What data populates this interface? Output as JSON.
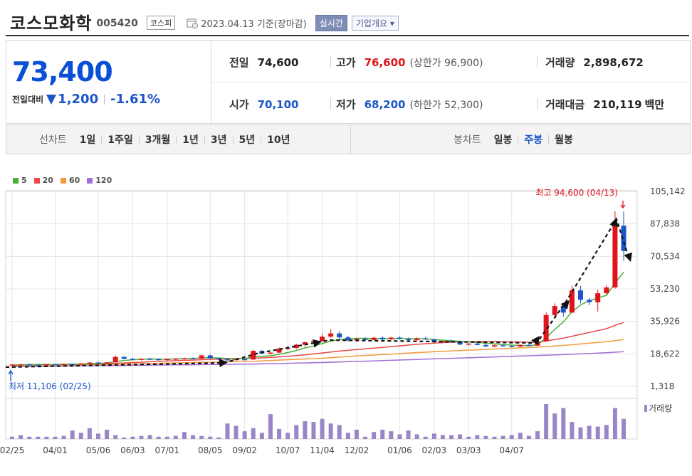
{
  "header": {
    "name": "코스모화학",
    "code": "005420",
    "market": "코스피",
    "date": "2023.04.13",
    "date_suffix": "기준(장마감)",
    "realtime": "실시간",
    "company_info": "기업개요 ▾"
  },
  "quote": {
    "price": "73,400",
    "change_label": "전일대비",
    "change_value": "1,200",
    "change_pct": "-1.61%",
    "prev_label": "전일",
    "prev_value": "74,600",
    "high_label": "고가",
    "high_value": "76,600",
    "upper_limit": "(상한가 96,900)",
    "volume_label": "거래량",
    "volume_value": "2,898,672",
    "open_label": "시가",
    "open_value": "70,100",
    "low_label": "저가",
    "low_value": "68,200",
    "lower_limit": "(하한가 52,300)",
    "amount_label": "거래대금",
    "amount_value": "210,119",
    "amount_unit": "백만"
  },
  "range_bar": {
    "line_label": "선차트",
    "line_items": [
      "1일",
      "1주일",
      "3개월",
      "1년",
      "3년",
      "5년",
      "10년"
    ],
    "candle_label": "봉차트",
    "candle_items": [
      "일봉",
      "주봉",
      "월봉"
    ],
    "candle_active": "주봉"
  },
  "colors": {
    "up": "#e0151c",
    "down": "#1b55c7",
    "ma5": "#4caf3a",
    "ma20": "#e8484a",
    "ma60": "#f39a3c",
    "ma120": "#9f6ed6",
    "volume": "#9a86c6"
  },
  "chart_data": {
    "type": "candlestick",
    "legend": [
      {
        "name": "5",
        "color": "#4caf3a"
      },
      {
        "name": "20",
        "color": "#e8484a"
      },
      {
        "name": "60",
        "color": "#f39a3c"
      },
      {
        "name": "120",
        "color": "#9f6ed6"
      }
    ],
    "y_ticks": [
      "105,142",
      "87,838",
      "70,534",
      "53,230",
      "35,926",
      "18,622",
      "1,318"
    ],
    "y_tick_values": [
      105142,
      87838,
      70534,
      53230,
      35926,
      18622,
      1318
    ],
    "x_ticks": [
      "02/25",
      "04/01",
      "05/06",
      "06/03",
      "07/01",
      "08/05",
      "09/02",
      "10/07",
      "11/04",
      "12/02",
      "01/06",
      "02/03",
      "03/03",
      "04/07"
    ],
    "max_label": "최고 94,600 (04/13)",
    "min_label": "최저 11,106 (02/25)",
    "volume_label": "거래량",
    "candles": [
      [
        12500,
        13200,
        11106,
        12900
      ],
      [
        12900,
        13300,
        12600,
        13000
      ],
      [
        13000,
        13400,
        12700,
        12800
      ],
      [
        12800,
        13100,
        12400,
        12700
      ],
      [
        12700,
        13200,
        12500,
        13100
      ],
      [
        13100,
        13300,
        12800,
        13000
      ],
      [
        13000,
        13400,
        12700,
        13200
      ],
      [
        13200,
        13500,
        12900,
        13100
      ],
      [
        13100,
        13600,
        12800,
        13500
      ],
      [
        13500,
        14200,
        13300,
        14000
      ],
      [
        14000,
        14500,
        13600,
        13800
      ],
      [
        13800,
        14300,
        13500,
        14100
      ],
      [
        14100,
        17800,
        14000,
        17000
      ],
      [
        17000,
        17300,
        15800,
        16000
      ],
      [
        16000,
        16500,
        15200,
        15700
      ],
      [
        15700,
        16200,
        15100,
        16000
      ],
      [
        16000,
        16600,
        15500,
        15800
      ],
      [
        15800,
        16300,
        15200,
        15500
      ],
      [
        15500,
        16100,
        15100,
        15900
      ],
      [
        15900,
        16400,
        15400,
        16100
      ],
      [
        16100,
        16700,
        15600,
        16300
      ],
      [
        16300,
        16800,
        15700,
        16000
      ],
      [
        16000,
        18400,
        15900,
        17800
      ],
      [
        17800,
        18200,
        15900,
        16300
      ],
      [
        16300,
        16700,
        15300,
        15700
      ],
      [
        15700,
        16200,
        15100,
        15500
      ],
      [
        15500,
        16000,
        15100,
        15800
      ],
      [
        15800,
        16300,
        15200,
        15600
      ],
      [
        15600,
        20800,
        15500,
        20200
      ],
      [
        20200,
        20700,
        18400,
        18800
      ],
      [
        18800,
        19600,
        18100,
        19300
      ],
      [
        19300,
        22000,
        19000,
        21400
      ],
      [
        21400,
        22600,
        20600,
        21800
      ],
      [
        21800,
        24000,
        21200,
        23500
      ],
      [
        23500,
        25200,
        22600,
        24800
      ],
      [
        24800,
        26000,
        23900,
        25400
      ],
      [
        25400,
        29300,
        25000,
        27800
      ],
      [
        27800,
        31700,
        27200,
        29500
      ],
      [
        29500,
        30800,
        26700,
        27400
      ],
      [
        27400,
        28300,
        25100,
        25800
      ],
      [
        25800,
        27100,
        25300,
        26600
      ],
      [
        26600,
        27400,
        25600,
        26100
      ],
      [
        26100,
        27800,
        25700,
        27200
      ],
      [
        27200,
        27900,
        25900,
        26400
      ],
      [
        26400,
        27700,
        26000,
        27300
      ],
      [
        27300,
        27900,
        26200,
        26600
      ],
      [
        26600,
        27300,
        25700,
        26000
      ],
      [
        26000,
        27400,
        25500,
        26900
      ],
      [
        26900,
        27800,
        26100,
        26300
      ],
      [
        26300,
        26700,
        24600,
        25000
      ],
      [
        25000,
        25700,
        24400,
        25400
      ],
      [
        25400,
        26200,
        24900,
        25100
      ],
      [
        25100,
        25500,
        23200,
        23600
      ],
      [
        23600,
        24300,
        22900,
        24100
      ],
      [
        24100,
        24700,
        23100,
        23400
      ],
      [
        23400,
        23900,
        22200,
        22600
      ],
      [
        22600,
        23500,
        22200,
        23200
      ],
      [
        23200,
        23700,
        22400,
        22800
      ],
      [
        22800,
        23300,
        22100,
        22500
      ],
      [
        22500,
        23700,
        22300,
        23400
      ],
      [
        23400,
        24000,
        22700,
        23000
      ],
      [
        23000,
        25700,
        22800,
        25300
      ],
      [
        25300,
        40600,
        25100,
        39300
      ],
      [
        39300,
        45500,
        38100,
        44100
      ],
      [
        44100,
        45000,
        38500,
        40600
      ],
      [
        40600,
        54900,
        40400,
        52400
      ],
      [
        52400,
        54800,
        45500,
        47400
      ],
      [
        47400,
        48400,
        44500,
        46100
      ],
      [
        46100,
        52800,
        41200,
        50900
      ],
      [
        50900,
        55200,
        50300,
        54000
      ],
      [
        54000,
        94600,
        53400,
        86900
      ],
      [
        86900,
        94600,
        68200,
        73400
      ]
    ],
    "ma5": [
      12600,
      12800,
      12900,
      12900,
      13000,
      13000,
      13100,
      13100,
      13200,
      13400,
      13600,
      13700,
      14500,
      15100,
      15500,
      15700,
      15900,
      15800,
      15800,
      15900,
      16000,
      16100,
      16500,
      16600,
      16400,
      16200,
      16100,
      16100,
      17000,
      17400,
      17600,
      18400,
      19300,
      20400,
      21800,
      22800,
      24100,
      25400,
      26300,
      26600,
      26900,
      26900,
      26800,
      26700,
      26800,
      26800,
      26700,
      26700,
      26600,
      26200,
      25900,
      25600,
      25300,
      25000,
      24700,
      24300,
      23900,
      23600,
      23300,
      23100,
      23000,
      23500,
      27200,
      31600,
      35600,
      41000,
      44700,
      46800,
      48400,
      49800,
      56400,
      62100
    ],
    "ma20": [
      12700,
      12800,
      12800,
      12900,
      12900,
      13000,
      13000,
      13100,
      13100,
      13200,
      13300,
      13400,
      13600,
      13800,
      14000,
      14200,
      14400,
      14600,
      14800,
      15000,
      15200,
      15300,
      15500,
      15700,
      15800,
      15900,
      16000,
      16100,
      16300,
      16500,
      16700,
      17000,
      17300,
      17700,
      18100,
      18600,
      19100,
      19600,
      20100,
      20500,
      20900,
      21300,
      21700,
      22100,
      22500,
      22900,
      23300,
      23700,
      24000,
      24300,
      24600,
      24800,
      25000,
      25100,
      25200,
      25200,
      25200,
      25100,
      25000,
      24900,
      24800,
      24800,
      25500,
      26300,
      27000,
      28000,
      29000,
      30000,
      31000,
      32000,
      33800,
      35300
    ],
    "ma60": [
      12400,
      12500,
      12500,
      12600,
      12600,
      12700,
      12700,
      12800,
      12800,
      12900,
      12900,
      13000,
      13100,
      13200,
      13300,
      13400,
      13500,
      13600,
      13700,
      13800,
      13900,
      14000,
      14100,
      14200,
      14300,
      14400,
      14500,
      14600,
      14700,
      14900,
      15100,
      15300,
      15500,
      15700,
      15900,
      16100,
      16300,
      16600,
      16900,
      17200,
      17500,
      17800,
      18000,
      18300,
      18500,
      18800,
      19000,
      19300,
      19500,
      19800,
      20000,
      20200,
      20400,
      20600,
      20800,
      21000,
      21200,
      21400,
      21600,
      21800,
      22000,
      22200,
      22500,
      22800,
      23100,
      23500,
      23900,
      24300,
      24700,
      25100,
      25700,
      26300
    ],
    "ma120": [
      11800,
      11850,
      11900,
      11950,
      12000,
      12050,
      12100,
      12150,
      12200,
      12250,
      12300,
      12350,
      12400,
      12450,
      12500,
      12550,
      12600,
      12650,
      12700,
      12750,
      12800,
      12850,
      12900,
      12950,
      13000,
      13050,
      13100,
      13150,
      13200,
      13300,
      13400,
      13500,
      13600,
      13700,
      13800,
      13900,
      14000,
      14150,
      14300,
      14450,
      14600,
      14750,
      14900,
      15050,
      15200,
      15350,
      15500,
      15650,
      15800,
      15950,
      16100,
      16250,
      16400,
      16550,
      16700,
      16850,
      17000,
      17150,
      17300,
      17450,
      17600,
      17750,
      17900,
      18050,
      18200,
      18400,
      18600,
      18800,
      19000,
      19200,
      19500,
      19800
    ],
    "volumes": [
      3,
      5,
      3,
      3,
      3,
      3,
      4,
      11,
      8,
      14,
      7,
      12,
      5,
      2,
      3,
      4,
      5,
      3,
      3,
      4,
      9,
      5,
      4,
      3,
      2,
      20,
      17,
      10,
      14,
      8,
      32,
      13,
      8,
      18,
      23,
      22,
      26,
      20,
      18,
      8,
      12,
      3,
      9,
      12,
      10,
      6,
      11,
      6,
      3,
      7,
      5,
      5,
      6,
      3,
      5,
      4,
      3,
      4,
      5,
      8,
      4,
      10,
      45,
      33,
      40,
      22,
      15,
      17,
      16,
      18,
      40,
      26
    ]
  }
}
